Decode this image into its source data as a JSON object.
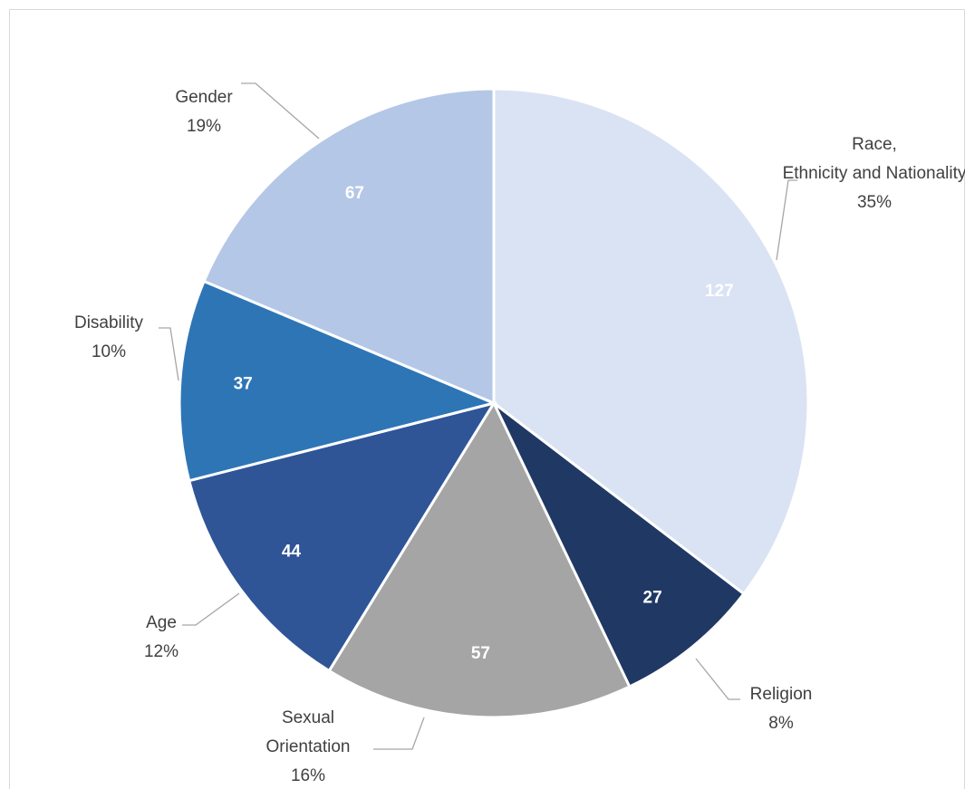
{
  "chart_data": {
    "type": "pie",
    "categories": [
      "Race, Ethnicity and Nationality",
      "Religion",
      "Sexual Orientation",
      "Age",
      "Disability",
      "Gender"
    ],
    "values": [
      127,
      27,
      57,
      44,
      37,
      67
    ],
    "percent_labels": [
      "35%",
      "8%",
      "16%",
      "12%",
      "10%",
      "19%"
    ],
    "colors": [
      "#dae3f3",
      "#203864",
      "#a5a5a5",
      "#2f5597",
      "#2e75b6",
      "#b4c7e7"
    ]
  }
}
